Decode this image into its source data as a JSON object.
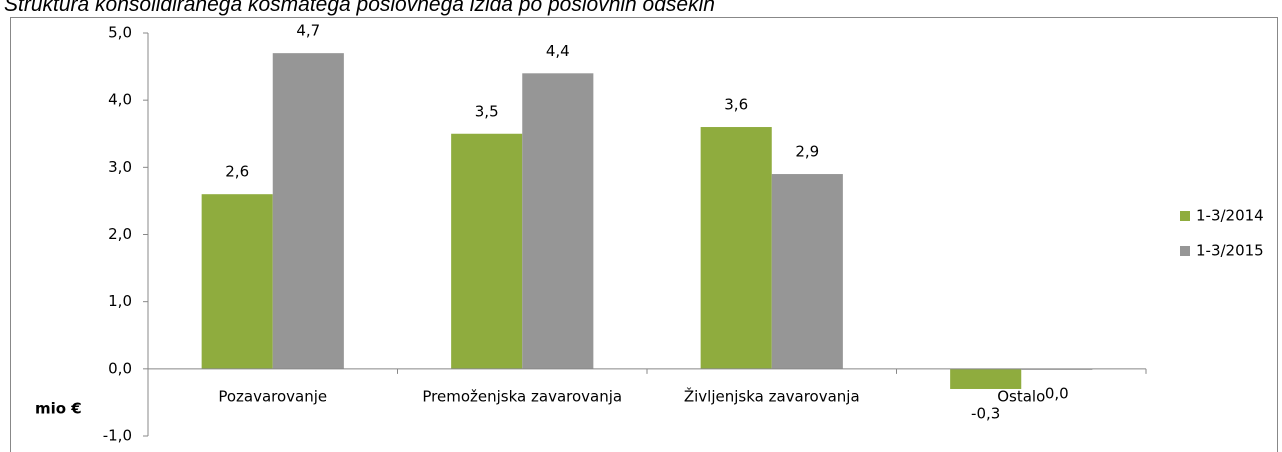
{
  "chart_data": {
    "type": "bar",
    "title": "Struktura konsolidiranega kosmatega poslovnega izida po poslovnih odsekih",
    "ylabel": "mio €",
    "categories": [
      "Pozavarovanje",
      "Premoženjska zavarovanja",
      "Življenjska zavarovanja",
      "Ostalo"
    ],
    "series": [
      {
        "name": "1-3/2014",
        "color": "#8fac3e",
        "values": [
          2.6,
          3.5,
          3.6,
          -0.3
        ],
        "value_labels": [
          "2,6",
          "3,5",
          "3,6",
          "-0,3"
        ]
      },
      {
        "name": "1-3/2015",
        "color": "#969696",
        "values": [
          4.7,
          4.4,
          2.9,
          0.0
        ],
        "value_labels": [
          "4,7",
          "4,4",
          "2,9",
          "0,0"
        ]
      }
    ],
    "ylim": [
      -1,
      5
    ],
    "yticks": [
      {
        "value": -1,
        "label": "-1,0"
      },
      {
        "value": 0,
        "label": "0,0"
      },
      {
        "value": 1,
        "label": "1,0"
      },
      {
        "value": 2,
        "label": "2,0"
      },
      {
        "value": 3,
        "label": "3,0"
      },
      {
        "value": 4,
        "label": "4,0"
      },
      {
        "value": 5,
        "label": "5,0"
      }
    ],
    "legend": "right"
  }
}
